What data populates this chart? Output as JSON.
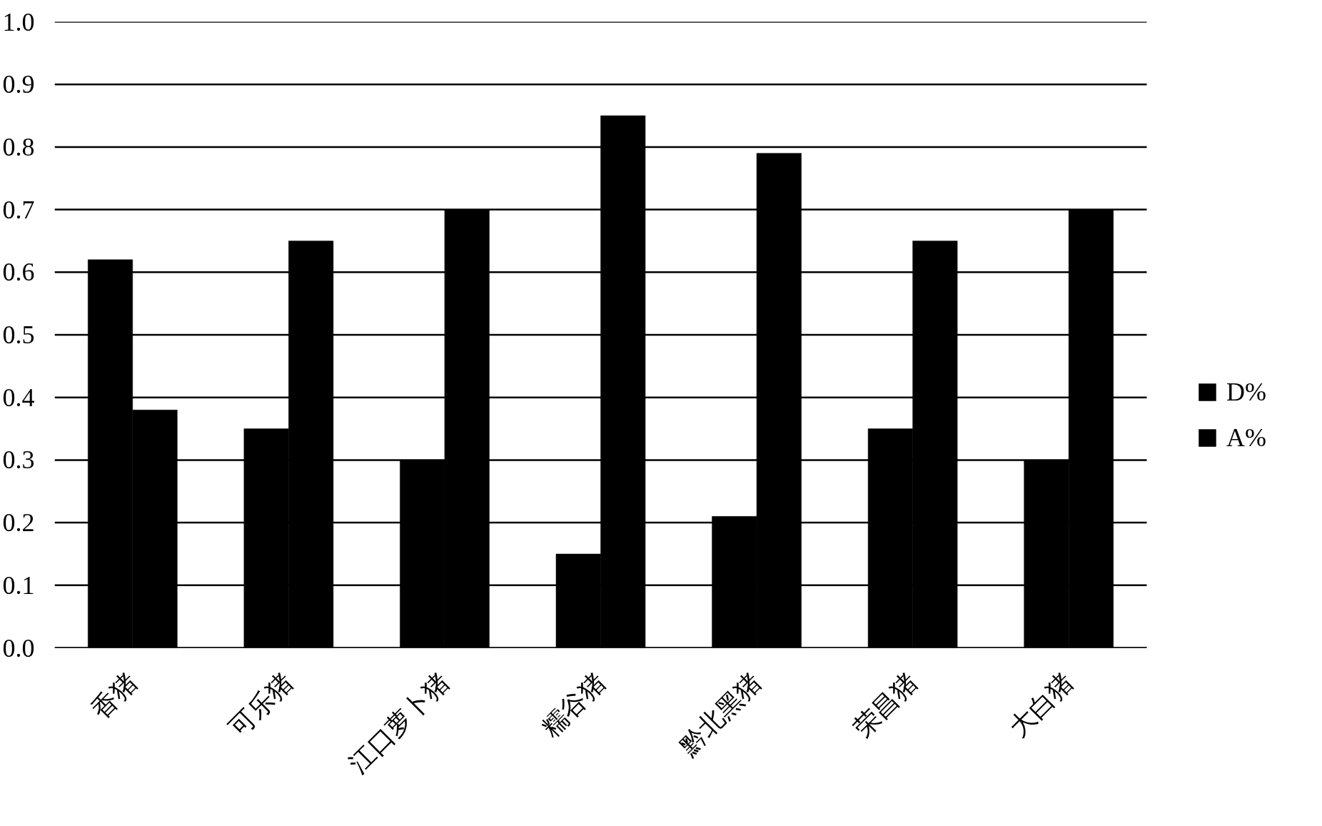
{
  "chart_data": {
    "type": "bar",
    "categories": [
      "香猪",
      "可乐猪",
      "江口萝卜猪",
      "糯谷猪",
      "黔北黑猪",
      "荣昌猪",
      "大白猪"
    ],
    "series": [
      {
        "name": "D%",
        "color": "#000000",
        "values": [
          0.62,
          0.35,
          0.3,
          0.15,
          0.21,
          0.35,
          0.3
        ]
      },
      {
        "name": "A%",
        "color": "#000000",
        "values": [
          0.38,
          0.65,
          0.7,
          0.85,
          0.79,
          0.65,
          0.7
        ]
      }
    ],
    "ylim": [
      0,
      1
    ],
    "yticks": [
      {
        "value": 0,
        "label": "0.0"
      },
      0.1,
      0.2,
      0.3,
      0.4,
      0.5,
      0.6,
      0.7,
      0.8,
      0.9,
      {
        "value": 1,
        "label": "1.0"
      }
    ],
    "grid": "y",
    "legend": "right"
  }
}
